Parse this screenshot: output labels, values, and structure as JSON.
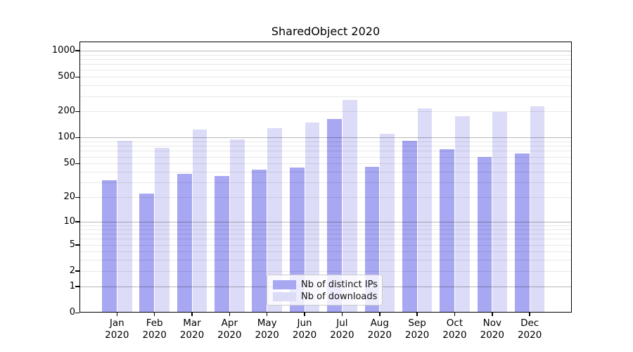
{
  "chart_data": {
    "type": "bar",
    "title": "SharedObject 2020",
    "categories": [
      "Jan 2020",
      "Feb 2020",
      "Mar 2020",
      "Apr 2020",
      "May 2020",
      "Jun 2020",
      "Jul 2020",
      "Aug 2020",
      "Sep 2020",
      "Oct 2020",
      "Nov 2020",
      "Dec 2020"
    ],
    "series": [
      {
        "name": "Nb of distinct IPs",
        "color": "#a7a7f2",
        "values": [
          32,
          22,
          38,
          36,
          42,
          45,
          164,
          46,
          92,
          74,
          60,
          66
        ]
      },
      {
        "name": "Nb of downloads",
        "color": "#dcdcf9",
        "values": [
          92,
          76,
          123,
          95,
          129,
          149,
          270,
          111,
          216,
          177,
          198,
          230
        ]
      }
    ],
    "xlabel": "",
    "ylabel": "",
    "yscale": "log1p",
    "ylim": [
      0,
      1270
    ],
    "ytick_values": [
      0,
      1,
      2,
      5,
      10,
      20,
      50,
      100,
      200,
      500,
      1000
    ],
    "ytick_labels": [
      "0",
      "1",
      "2",
      "5",
      "10",
      "20",
      "50",
      "100",
      "200",
      "500",
      "1000"
    ],
    "grid": "major+minor",
    "legend_position": "lower center inside"
  }
}
